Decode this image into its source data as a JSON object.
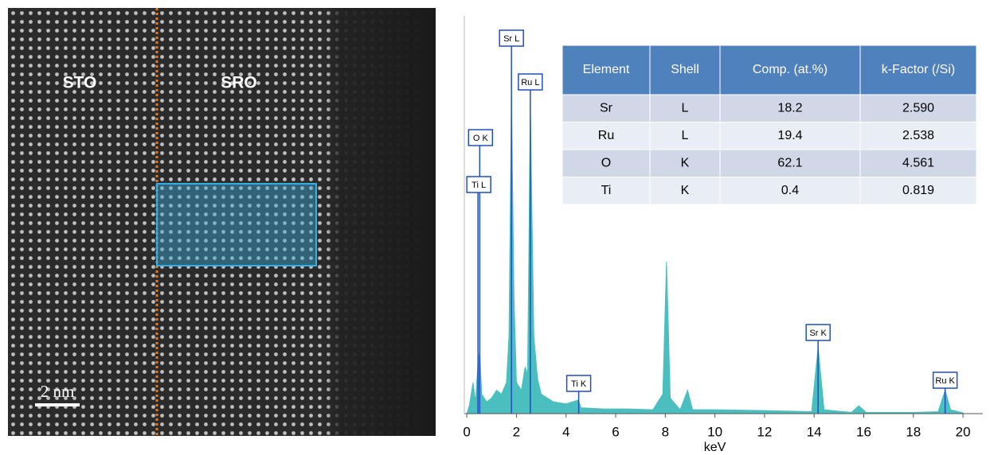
{
  "image": {
    "labels": [
      "STO",
      "SRO"
    ],
    "scale_bar": "2 nm"
  },
  "chart_data": {
    "type": "area",
    "x_label": "keV",
    "xlim": [
      -0.1,
      20.8
    ],
    "ylim": [
      0,
      100
    ],
    "xticks": [
      0,
      2,
      4,
      6,
      8,
      10,
      12,
      14,
      16,
      18,
      20
    ],
    "color": "#4bbfbf",
    "x": [
      0,
      0.1,
      0.25,
      0.35,
      0.45,
      0.52,
      0.6,
      0.8,
      1.0,
      1.2,
      1.4,
      1.6,
      1.7,
      1.8,
      1.9,
      2.0,
      2.2,
      2.35,
      2.45,
      2.56,
      2.7,
      2.85,
      3.0,
      3.5,
      4.0,
      4.5,
      4.6,
      5.5,
      6.5,
      7.5,
      7.9,
      8.05,
      8.2,
      8.6,
      8.9,
      9.1,
      10,
      12,
      13.9,
      14.16,
      14.4,
      15.5,
      15.8,
      16.1,
      18,
      19.0,
      19.28,
      19.5,
      20
    ],
    "values": [
      0,
      2,
      8,
      3,
      13,
      16,
      5,
      3,
      4,
      6,
      5,
      8,
      20,
      82,
      30,
      8,
      6,
      12,
      10,
      79,
      20,
      9,
      5,
      3,
      2.5,
      3.5,
      1.5,
      1.2,
      1.2,
      1,
      5,
      39,
      4,
      1,
      6,
      1,
      1,
      0.8,
      0.5,
      17,
      1,
      0.3,
      2,
      0.3,
      0.3,
      0.5,
      6,
      1,
      0.2
    ],
    "peaks": [
      {
        "label": "Sr L",
        "x": 1.8
      },
      {
        "label": "Ru L",
        "x": 2.56
      },
      {
        "label": "O K",
        "x": 0.52
      },
      {
        "label": "Ti L",
        "x": 0.45
      },
      {
        "label": "Ti K",
        "x": 4.51
      },
      {
        "label": "Sr K",
        "x": 14.16
      },
      {
        "label": "Ru K",
        "x": 19.28
      }
    ]
  },
  "table": {
    "header": [
      "Element",
      "Shell",
      "Comp. (at.%)",
      "k-Factor (/Si)"
    ],
    "rows": [
      [
        "Sr",
        "L",
        "18.2",
        "2.590"
      ],
      [
        "Ru",
        "L",
        "19.4",
        "2.538"
      ],
      [
        "O",
        "K",
        "62.1",
        "4.561"
      ],
      [
        "Ti",
        "K",
        "0.4",
        "0.819"
      ]
    ]
  }
}
